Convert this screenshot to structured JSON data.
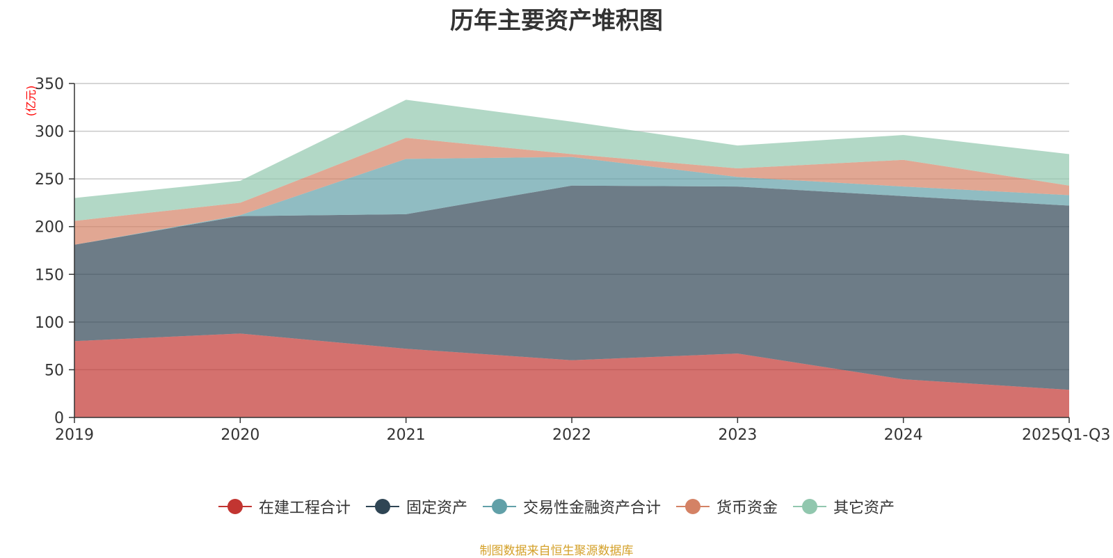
{
  "chart_data": {
    "type": "area",
    "stacked": true,
    "title": "历年主要资产堆积图",
    "ylabel": "(亿元)",
    "xlabel": "",
    "categories": [
      "2019",
      "2020",
      "2021",
      "2022",
      "2023",
      "2024",
      "2025Q1-Q3"
    ],
    "ylim": [
      0,
      350
    ],
    "yticks": [
      "0",
      "50",
      "100",
      "150",
      "200",
      "250",
      "300",
      "350"
    ],
    "grid": true,
    "legend_position": "bottom",
    "series": [
      {
        "name": "在建工程合计",
        "color": "#c23531",
        "values": [
          80,
          88,
          72,
          60,
          67,
          40,
          29
        ]
      },
      {
        "name": "固定资产",
        "color": "#2f4554",
        "values": [
          101,
          123,
          141,
          183,
          175,
          192,
          193
        ]
      },
      {
        "name": "交易性金融资产合计",
        "color": "#61a0a8",
        "values": [
          0,
          1,
          58,
          30,
          10,
          10,
          11
        ]
      },
      {
        "name": "货币资金",
        "color": "#d48265",
        "values": [
          25,
          13,
          22,
          3,
          9,
          28,
          10
        ]
      },
      {
        "name": "其它资产",
        "color": "#91c7ae",
        "values": [
          24,
          23,
          40,
          34,
          24,
          26,
          33
        ]
      }
    ]
  },
  "footer_note": "制图数据来自恒生聚源数据库"
}
